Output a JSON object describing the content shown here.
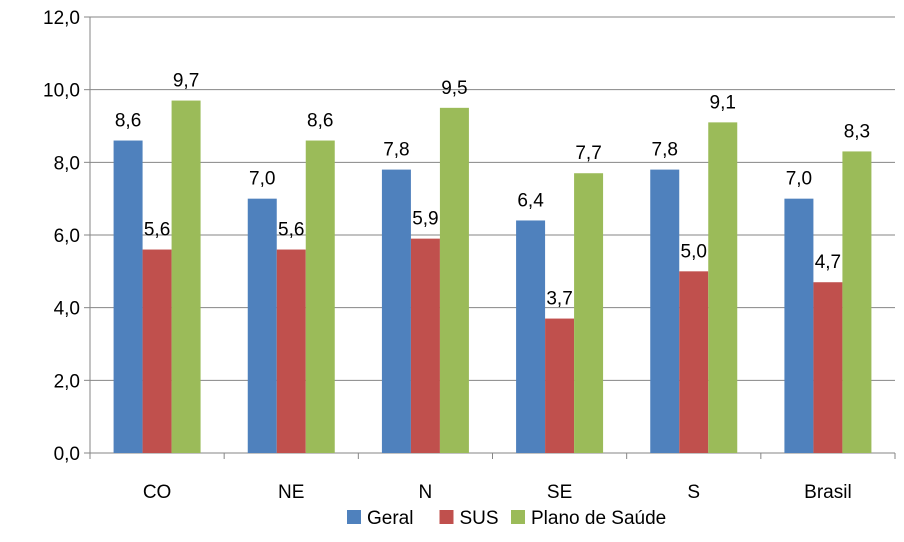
{
  "chart_data": {
    "type": "bar",
    "categories": [
      "CO",
      "NE",
      "N",
      "SE",
      "S",
      "Brasil"
    ],
    "series": [
      {
        "name": "Geral",
        "values": [
          8.6,
          7.0,
          7.8,
          6.4,
          7.8,
          7.0
        ],
        "labels": [
          "8,6",
          "7,0",
          "7,8",
          "6,4",
          "7,8",
          "7,0"
        ],
        "color": "#4F81BD"
      },
      {
        "name": "SUS",
        "values": [
          5.6,
          5.6,
          5.9,
          3.7,
          5.0,
          4.7
        ],
        "labels": [
          "5,6",
          "5,6",
          "5,9",
          "3,7",
          "5,0",
          "4,7"
        ],
        "color": "#C0504D"
      },
      {
        "name": "Plano de Saúde",
        "values": [
          9.7,
          8.6,
          9.5,
          7.7,
          9.1,
          8.3
        ],
        "labels": [
          "9,7",
          "8,6",
          "9,5",
          "7,7",
          "9,1",
          "8,3"
        ],
        "color": "#9BBB59"
      }
    ],
    "ylim": [
      0,
      12
    ],
    "yticks": [
      "0,0",
      "2,0",
      "4,0",
      "6,0",
      "8,0",
      "10,0",
      "12,0"
    ],
    "grid": true,
    "legend_position": "bottom",
    "title": "",
    "xlabel": "",
    "ylabel": ""
  }
}
